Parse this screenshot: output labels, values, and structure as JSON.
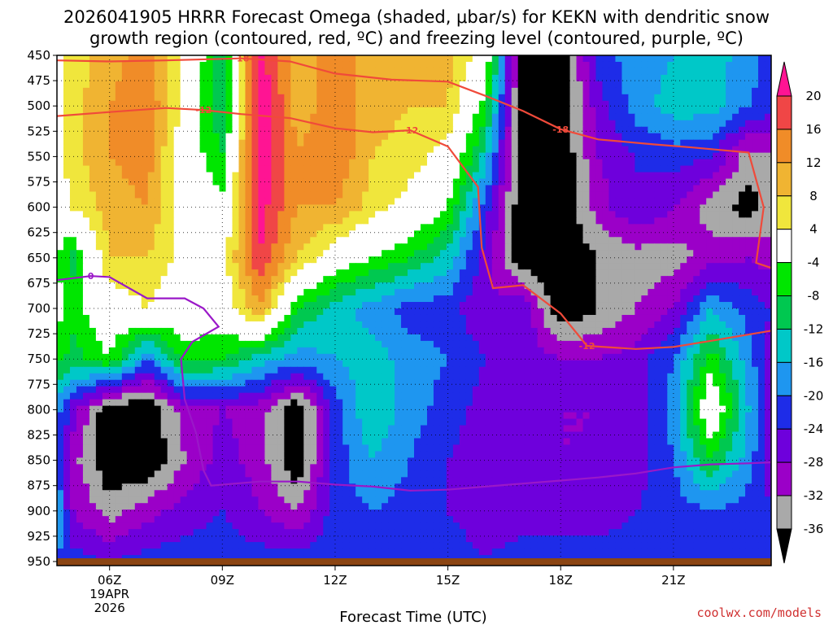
{
  "title_line1": "2026041905 HRRR Forecast Omega (shaded, μbar/s) for KEKN with dendritic snow",
  "title_line2": "growth region (contoured, red, ºC) and freezing level (contoured, purple, ºC)",
  "credit": "coolwx.com/models",
  "chart_data": {
    "type": "heatmap",
    "title": "2026041905 HRRR Forecast Omega (shaded, μbar/s) for KEKN with dendritic snow growth region (contoured, red, ºC) and freezing level (contoured, purple, ºC)",
    "xlabel": "Forecast Time (UTC)",
    "ylabel": "",
    "x_range_hours_utc": [
      4.6,
      23.6
    ],
    "y_range_hpa": [
      950,
      450
    ],
    "y_ticks": [
      450,
      475,
      500,
      525,
      550,
      575,
      600,
      625,
      650,
      675,
      700,
      725,
      750,
      775,
      800,
      825,
      850,
      875,
      900,
      925,
      950
    ],
    "x_ticks": [
      {
        "hour": 6,
        "label": "06Z",
        "sub1": "19APR",
        "sub2": "2026"
      },
      {
        "hour": 9,
        "label": "09Z"
      },
      {
        "hour": 12,
        "label": "12Z"
      },
      {
        "hour": 15,
        "label": "15Z"
      },
      {
        "hour": 18,
        "label": "18Z"
      },
      {
        "hour": 21,
        "label": "21Z"
      }
    ],
    "colorbar": {
      "levels": [
        -36,
        -32,
        -28,
        -24,
        -20,
        -16,
        -12,
        -8,
        -4,
        4,
        8,
        12,
        16,
        20
      ],
      "labels": [
        "-36",
        "-32",
        "-28",
        "-24",
        "-20",
        "-16",
        "-12",
        "-8",
        "-4",
        "4",
        "8",
        "12",
        "16",
        "20"
      ],
      "colors": [
        "#000000",
        "#a9a9a9",
        "#9b00c8",
        "#6e00dc",
        "#1e2ce8",
        "#1e96f0",
        "#00c8c8",
        "#00c850",
        "#00e600",
        "#ffffff",
        "#f0e63c",
        "#f0b432",
        "#f08c28",
        "#f04646",
        "#ff1493"
      ],
      "under_color": "#000000",
      "over_color": "#ff1493"
    },
    "omega_hours": [
      4.6,
      5,
      6,
      7,
      8,
      9,
      10,
      11,
      12,
      13,
      14,
      15,
      16,
      17,
      18,
      19,
      20,
      21,
      22,
      23,
      23.6
    ],
    "omega_levels_hpa": [
      450,
      500,
      550,
      600,
      650,
      700,
      750,
      800,
      850,
      900,
      950
    ],
    "omega_values": [
      [
        2,
        6,
        10,
        14,
        2,
        -10,
        22,
        10,
        14,
        10,
        8,
        10,
        0,
        -40,
        -40,
        -22,
        -18,
        -16,
        -14,
        -18,
        -22
      ],
      [
        2,
        6,
        12,
        16,
        2,
        -12,
        24,
        10,
        14,
        10,
        8,
        8,
        -6,
        -40,
        -40,
        -26,
        -18,
        -14,
        -14,
        -20,
        -22
      ],
      [
        2,
        6,
        12,
        14,
        0,
        -8,
        24,
        12,
        16,
        8,
        6,
        2,
        -14,
        -40,
        -40,
        -28,
        -24,
        -22,
        -24,
        -34,
        -32
      ],
      [
        2,
        4,
        10,
        12,
        0,
        -2,
        22,
        12,
        12,
        6,
        2,
        -4,
        -22,
        -40,
        -40,
        -30,
        -24,
        -28,
        -34,
        -38,
        -34
      ],
      [
        -4,
        -10,
        8,
        8,
        2,
        2,
        20,
        8,
        0,
        -4,
        -8,
        -14,
        -26,
        -40,
        -40,
        -36,
        -34,
        -34,
        -30,
        -28,
        -30
      ],
      [
        -2,
        -6,
        0,
        4,
        0,
        0,
        12,
        -8,
        -14,
        -18,
        -22,
        -22,
        -28,
        -24,
        -40,
        -36,
        -32,
        -28,
        -16,
        -22,
        -24
      ],
      [
        -6,
        -10,
        -4,
        -20,
        -6,
        -8,
        -14,
        -18,
        -16,
        -14,
        -18,
        -20,
        -24,
        -26,
        -28,
        -28,
        -26,
        -20,
        -6,
        -18,
        -26
      ],
      [
        -18,
        -26,
        -40,
        -40,
        -30,
        -28,
        -30,
        -40,
        -22,
        -12,
        -18,
        -22,
        -26,
        -26,
        -28,
        -28,
        -26,
        -18,
        2,
        -16,
        -26
      ],
      [
        -20,
        -30,
        -40,
        -40,
        -32,
        -26,
        -30,
        -40,
        -22,
        -16,
        -20,
        -24,
        -26,
        -26,
        -28,
        -28,
        -26,
        -20,
        -8,
        -18,
        -26
      ],
      [
        -16,
        -28,
        -34,
        -30,
        -26,
        -24,
        -28,
        -32,
        -22,
        -20,
        -22,
        -24,
        -26,
        -26,
        -26,
        -26,
        -24,
        -22,
        -20,
        -22,
        -24
      ],
      [
        -20,
        -22,
        -24,
        -22,
        -22,
        -22,
        -22,
        -22,
        -22,
        -22,
        -22,
        -22,
        -24,
        -22,
        -22,
        -22,
        -22,
        -22,
        -22,
        -22,
        -22
      ]
    ],
    "dendritic_contours": [
      {
        "label": "-18",
        "points": [
          [
            4.6,
            455
          ],
          [
            6,
            456
          ],
          [
            7.5,
            455
          ],
          [
            9.5,
            453
          ],
          [
            10.8,
            456
          ],
          [
            12,
            468
          ],
          [
            13.5,
            474
          ],
          [
            15,
            476
          ],
          [
            16,
            490
          ],
          [
            17,
            505
          ],
          [
            18,
            523
          ],
          [
            19,
            533
          ],
          [
            20.5,
            538
          ],
          [
            21.5,
            541
          ],
          [
            23,
            546
          ],
          [
            23.4,
            600
          ],
          [
            23.2,
            655
          ],
          [
            23.6,
            660
          ]
        ]
      },
      {
        "label": "-12",
        "points": [
          [
            4.6,
            510
          ],
          [
            6,
            506
          ],
          [
            7.5,
            502
          ],
          [
            8.5,
            504
          ],
          [
            9.5,
            508
          ],
          [
            10.8,
            512
          ],
          [
            12,
            522
          ],
          [
            13,
            526
          ],
          [
            14,
            524
          ],
          [
            15,
            540
          ],
          [
            15.8,
            580
          ],
          [
            15.9,
            640
          ],
          [
            16.2,
            680
          ],
          [
            17,
            677
          ],
          [
            18,
            705
          ],
          [
            18.7,
            737
          ],
          [
            20,
            740
          ],
          [
            21,
            738
          ],
          [
            22,
            732
          ],
          [
            23.6,
            722
          ]
        ]
      }
    ],
    "freezing_contours": [
      {
        "label": "0",
        "points": [
          [
            4.6,
            672
          ],
          [
            5.5,
            668
          ],
          [
            6,
            669
          ],
          [
            7,
            690
          ],
          [
            8,
            690
          ],
          [
            8.5,
            700
          ],
          [
            8.9,
            718
          ],
          [
            8.2,
            733
          ],
          [
            7.9,
            750
          ],
          [
            8.0,
            790
          ],
          [
            8.3,
            823
          ],
          [
            8.5,
            860
          ],
          [
            8.7,
            875
          ],
          [
            10,
            871
          ],
          [
            11,
            871
          ],
          [
            12,
            874
          ],
          [
            13,
            876
          ],
          [
            14,
            880
          ],
          [
            15,
            879
          ],
          [
            16,
            876
          ],
          [
            17,
            873
          ],
          [
            18,
            870
          ],
          [
            19,
            867
          ],
          [
            20,
            863
          ],
          [
            21,
            857
          ],
          [
            22,
            854
          ],
          [
            23,
            853
          ],
          [
            23.6,
            852
          ]
        ]
      }
    ]
  }
}
